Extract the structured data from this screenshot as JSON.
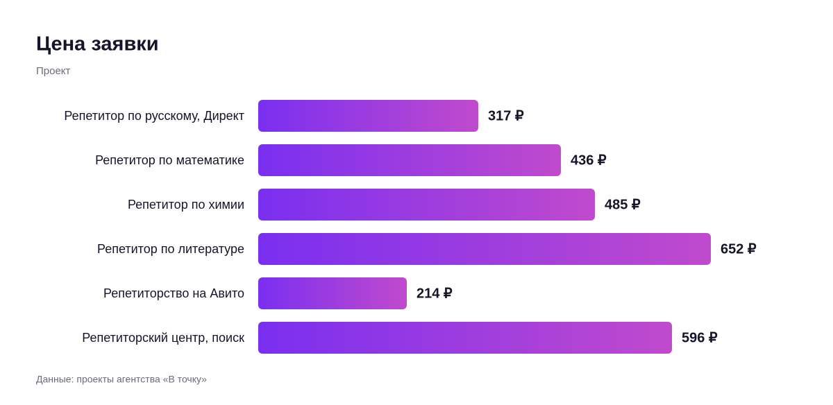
{
  "chart_data": {
    "type": "bar",
    "orientation": "horizontal",
    "title": "Цена заявки",
    "subtitle": "Проект",
    "categories": [
      "Репетитор по русскому, Директ",
      "Репетитор по математике",
      "Репетитор по химии",
      "Репетитор по литературе",
      "Репетиторство на Авито",
      "Репетиторский центр, поиск"
    ],
    "values": [
      317,
      436,
      485,
      652,
      214,
      596
    ],
    "value_labels": [
      "317 ₽",
      "436 ₽",
      "485 ₽",
      "652 ₽",
      "214 ₽",
      "596 ₽"
    ],
    "gradient": [
      "#7a2ff0",
      "#c04acd"
    ],
    "source": "Данные: проекты агентства «В точку»"
  }
}
